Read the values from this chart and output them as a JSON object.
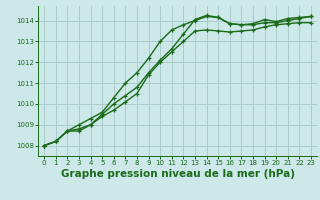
{
  "background_color": "#cce8e8",
  "grid_color": "#aacccc",
  "line_color": "#1a6b1a",
  "title": "Graphe pression niveau de la mer (hPa)",
  "title_fontsize": 7.5,
  "xlim": [
    -0.5,
    23.5
  ],
  "ylim": [
    1007.5,
    1014.7
  ],
  "yticks": [
    1008,
    1009,
    1010,
    1011,
    1012,
    1013,
    1014
  ],
  "xticks": [
    0,
    1,
    2,
    3,
    4,
    5,
    6,
    7,
    8,
    9,
    10,
    11,
    12,
    13,
    14,
    15,
    16,
    17,
    18,
    19,
    20,
    21,
    22,
    23
  ],
  "series1": [
    1008.0,
    1008.2,
    1008.7,
    1008.8,
    1009.0,
    1009.4,
    1009.7,
    1010.1,
    1010.5,
    1011.4,
    1012.0,
    1012.5,
    1013.0,
    1013.5,
    1013.55,
    1013.5,
    1013.45,
    1013.5,
    1013.55,
    1013.7,
    1013.8,
    1013.85,
    1013.9,
    1013.9
  ],
  "series2": [
    1008.0,
    1008.2,
    1008.7,
    1009.0,
    1009.3,
    1009.6,
    1010.3,
    1011.0,
    1011.5,
    1012.2,
    1013.0,
    1013.55,
    1013.8,
    1014.0,
    1014.2,
    1014.15,
    1013.85,
    1013.8,
    1013.8,
    1013.9,
    1013.9,
    1014.0,
    1014.1,
    1014.2
  ],
  "series3": [
    1008.0,
    1008.2,
    1008.7,
    1008.7,
    1009.0,
    1009.5,
    1010.0,
    1010.4,
    1010.8,
    1011.5,
    1012.1,
    1012.65,
    1013.35,
    1014.05,
    1014.25,
    1014.15,
    1013.85,
    1013.8,
    1013.85,
    1014.05,
    1013.95,
    1014.1,
    1014.15,
    1014.2
  ],
  "marker_size": 3.5,
  "line_width": 1.0
}
